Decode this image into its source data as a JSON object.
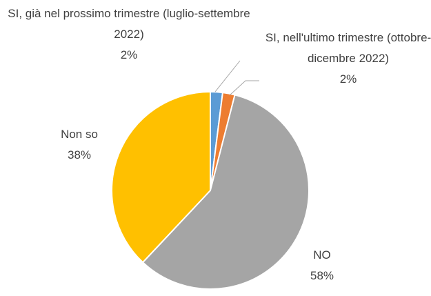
{
  "chart_data": {
    "type": "pie",
    "categories": [
      "SI, già nel prossimo trimestre (luglio-settembre 2022)",
      "SI, nell'ultimo trimestre (ottobre-dicembre 2022)",
      "NO",
      "Non so"
    ],
    "values": [
      2,
      2,
      58,
      38
    ],
    "value_labels": [
      "2%",
      "2%",
      "58%",
      "38%"
    ],
    "colors": [
      "#5B9BD5",
      "#ED7D31",
      "#A5A5A5",
      "#FFC000"
    ]
  }
}
